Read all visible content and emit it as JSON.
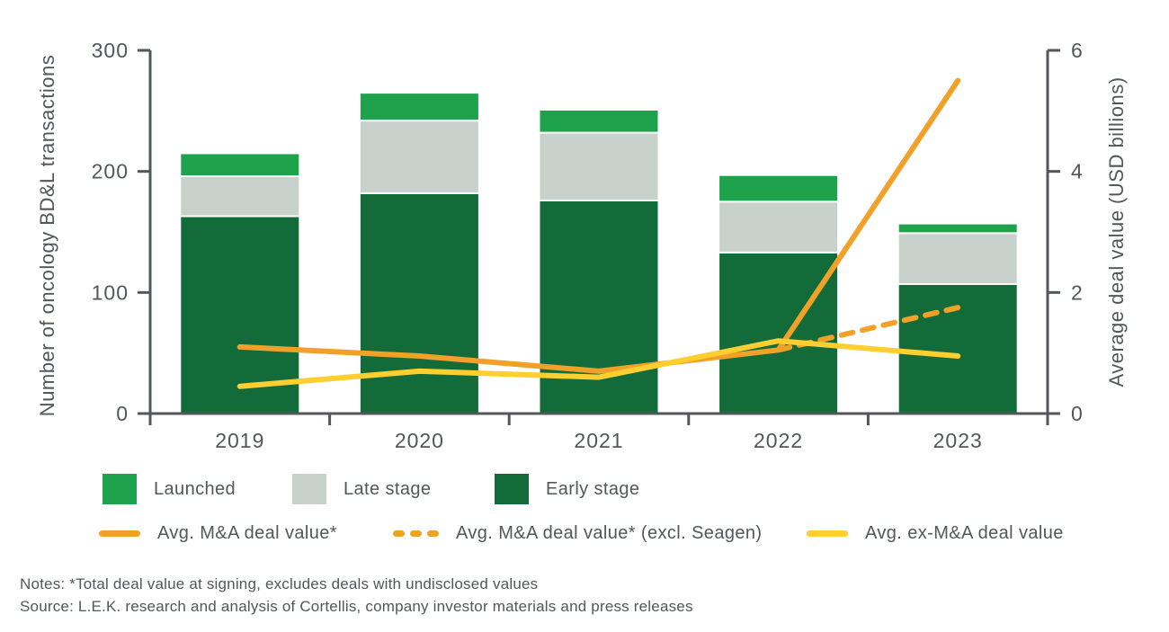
{
  "figure": {
    "notes": "Notes: *Total deal value at signing, excludes deals with undisclosed values",
    "source": "Source: L.E.K. research and analysis of Cortellis, company investor materials and press releases"
  },
  "chart_data": {
    "type": "bar",
    "subtype": "stacked-bars-with-line-overlay",
    "categories": [
      "2019",
      "2020",
      "2021",
      "2022",
      "2023"
    ],
    "bar_series": [
      {
        "name": "Early stage",
        "color": "#136B3A",
        "values": [
          163,
          182,
          176,
          133,
          107
        ]
      },
      {
        "name": "Late stage",
        "color": "#C8D1CB",
        "values": [
          33,
          60,
          56,
          42,
          42
        ]
      },
      {
        "name": "Launched",
        "color": "#1FA24C",
        "values": [
          19,
          23,
          19,
          22,
          8
        ]
      }
    ],
    "bar_totals": [
      215,
      265,
      251,
      197,
      157
    ],
    "line_series": [
      {
        "name": "Avg. M&A deal value*",
        "color": "#F2A128",
        "style": "solid",
        "axis": "right",
        "values": [
          1.1,
          0.95,
          0.7,
          1.05,
          5.5
        ]
      },
      {
        "name": "Avg. M&A deal value* (excl. Seagen)",
        "color": "#F2A128",
        "style": "dashed",
        "axis": "right",
        "values": [
          null,
          null,
          null,
          1.05,
          1.75
        ]
      },
      {
        "name": "Avg. ex-M&A deal value",
        "color": "#FFCF30",
        "style": "solid",
        "axis": "right",
        "values": [
          0.45,
          0.7,
          0.6,
          1.2,
          0.95
        ]
      }
    ],
    "left_axis": {
      "label": "Number of oncology BD&L transactions",
      "range": [
        0,
        300
      ],
      "ticks": [
        0,
        100,
        200,
        300
      ]
    },
    "right_axis": {
      "label": "Average deal value (USD billions)",
      "range": [
        0,
        6
      ],
      "ticks": [
        0,
        2,
        4,
        6
      ]
    },
    "axis_color": "#53565A",
    "text_color": "#53565A",
    "grid": false,
    "legend_position": "bottom",
    "title": ""
  }
}
